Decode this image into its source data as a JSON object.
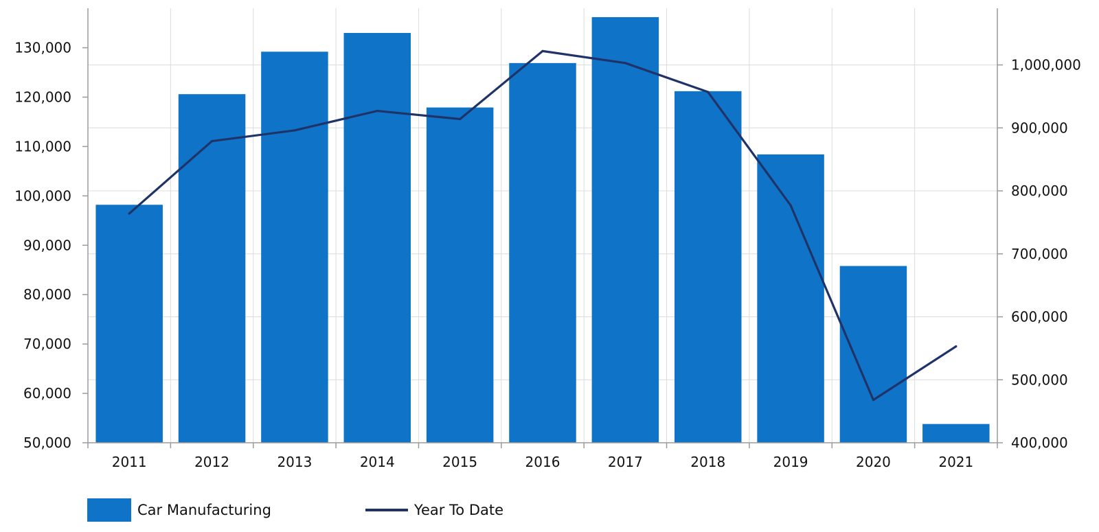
{
  "chart_data": {
    "type": "bar",
    "title": "",
    "xlabel": "",
    "ylabel": "",
    "categories": [
      "2011",
      "2012",
      "2013",
      "2014",
      "2015",
      "2016",
      "2017",
      "2018",
      "2019",
      "2020",
      "2021"
    ],
    "series": [
      {
        "name": "Car Manufacturing",
        "type": "bar",
        "axis": "left",
        "color": "#0f73c8",
        "values": [
          98200,
          120600,
          129200,
          133000,
          117900,
          126900,
          136200,
          121200,
          108400,
          85800,
          53800
        ]
      },
      {
        "name": "Year To Date",
        "type": "line",
        "axis": "right",
        "color": "#1f3368",
        "values": [
          764000,
          879000,
          896000,
          927000,
          914000,
          1022000,
          1003000,
          957000,
          777000,
          468000,
          553000
        ]
      }
    ],
    "y_left": {
      "lim": [
        50000,
        138000
      ],
      "ticks": [
        50000,
        60000,
        70000,
        80000,
        90000,
        100000,
        110000,
        120000,
        130000
      ],
      "tick_labels": [
        "50,000",
        "60,000",
        "70,000",
        "80,000",
        "90,000",
        "100,000",
        "110,000",
        "120,000",
        "130,000"
      ]
    },
    "y_right": {
      "lim": [
        400000,
        1090000
      ],
      "ticks": [
        400000,
        500000,
        600000,
        700000,
        800000,
        900000,
        1000000
      ],
      "tick_labels": [
        "400,000",
        "500,000",
        "600,000",
        "700,000",
        "800,000",
        "900,000",
        "1,000,000"
      ]
    },
    "grid": true,
    "legend_position": "bottom-left"
  },
  "legend": {
    "bar_label": "Car Manufacturing",
    "line_label": "Year To Date"
  }
}
